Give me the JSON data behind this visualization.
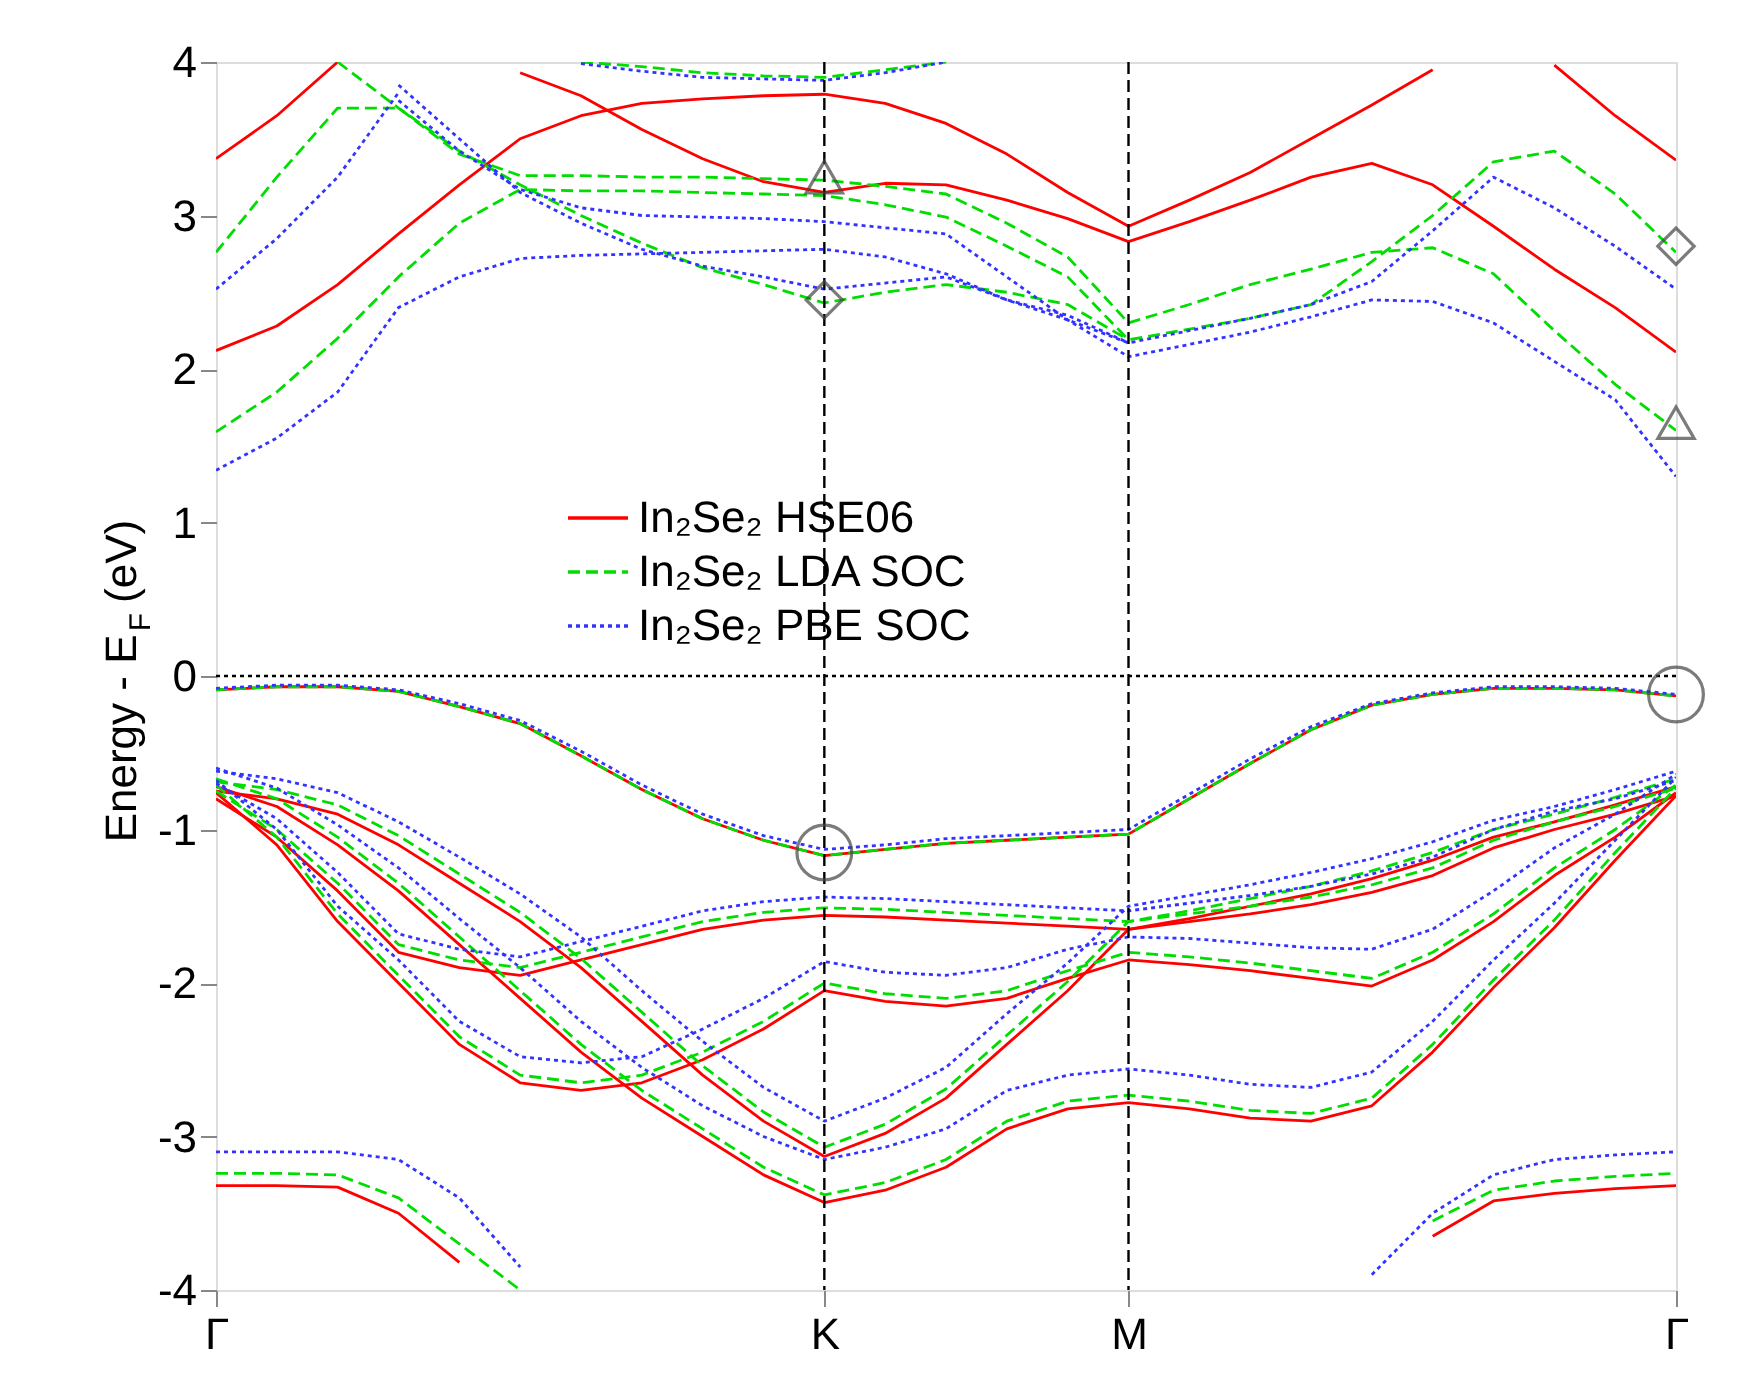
{
  "chart_data": {
    "type": "line",
    "ylabel": "Energy - E$_{F}$ (eV)",
    "ylim": [
      -4,
      4
    ],
    "categories": [
      "Γ",
      null,
      null,
      null,
      null,
      null,
      null,
      null,
      null,
      null,
      "K",
      null,
      null,
      null,
      null,
      "M",
      null,
      null,
      null,
      null,
      null,
      null,
      null,
      null,
      "Γ"
    ],
    "yticks": [
      -4,
      -3,
      -2,
      -1,
      0,
      1,
      2,
      3,
      4
    ],
    "grid": false,
    "legend": "center",
    "ref_lines": [
      {
        "axis": "x",
        "value": "K",
        "line_style": "dashed",
        "color": "#000000"
      },
      {
        "axis": "x",
        "value": "M",
        "line_style": "dashed",
        "color": "#000000"
      },
      {
        "axis": "y",
        "value": 0,
        "line_style": "dotted",
        "color": "#000000"
      }
    ],
    "series": [
      {
        "name": "In₂Se₂ HSE06",
        "color": "#ff0000",
        "line_style": "solid",
        "values": [
          -0.09,
          -0.07,
          -0.07,
          -0.1,
          -0.2,
          -0.31,
          -0.52,
          -0.74,
          -0.93,
          -1.07,
          -1.17,
          -1.13,
          -1.09,
          -1.07,
          -1.05,
          -1.03,
          -0.8,
          -0.57,
          -0.35,
          -0.19,
          -0.12,
          -0.08,
          -0.08,
          -0.09,
          -0.13
        ]
      },
      {
        "color": "#ff0000",
        "line_style": "solid",
        "values": [
          -0.8,
          -1.05,
          -1.4,
          -1.8,
          -1.9,
          -1.95,
          -1.85,
          -1.75,
          -1.65,
          -1.59,
          -1.56,
          -1.57,
          -1.59,
          -1.61,
          -1.63,
          -1.65,
          -1.6,
          -1.55,
          -1.49,
          -1.41,
          -1.3,
          -1.12,
          -1.0,
          -0.9,
          -0.78
        ]
      },
      {
        "color": "#ff0000",
        "line_style": "solid",
        "values": [
          -0.76,
          -1.1,
          -1.6,
          -2.0,
          -2.4,
          -2.65,
          -2.7,
          -2.65,
          -2.5,
          -2.3,
          -2.05,
          -2.12,
          -2.15,
          -2.1,
          -1.97,
          -1.85,
          -1.88,
          -1.92,
          -1.97,
          -2.02,
          -1.85,
          -1.6,
          -1.3,
          -1.05,
          -0.76
        ]
      },
      {
        "color": "#ff0000",
        "line_style": "solid",
        "values": [
          -0.75,
          -0.8,
          -0.9,
          -1.1,
          -1.35,
          -1.6,
          -1.9,
          -2.25,
          -2.6,
          -2.9,
          -3.13,
          -2.98,
          -2.75,
          -2.4,
          -2.05,
          -1.65,
          -1.58,
          -1.5,
          -1.42,
          -1.32,
          -1.2,
          -1.05,
          -0.95,
          -0.84,
          -0.72
        ]
      },
      {
        "color": "#ff0000",
        "line_style": "solid",
        "values": [
          -0.72,
          -0.85,
          -1.1,
          -1.4,
          -1.75,
          -2.1,
          -2.45,
          -2.75,
          -3.0,
          -3.25,
          -3.43,
          -3.35,
          -3.2,
          -2.95,
          -2.82,
          -2.78,
          -2.82,
          -2.88,
          -2.9,
          -2.8,
          -2.45,
          -2.03,
          -1.64,
          -1.2,
          -0.78
        ]
      },
      {
        "color": "#ff0000",
        "line_style": "solid",
        "values": [
          -3.32,
          -3.32,
          -3.33,
          -3.5,
          -3.82,
          null,
          null,
          null,
          null,
          null,
          null,
          null,
          null,
          null,
          null,
          null,
          null,
          null,
          null,
          null,
          null,
          null,
          null,
          null,
          null
        ]
      },
      {
        "color": "#ff0000",
        "line_style": "solid",
        "values": [
          null,
          null,
          null,
          null,
          null,
          null,
          null,
          null,
          null,
          null,
          null,
          null,
          null,
          null,
          null,
          null,
          null,
          null,
          null,
          null,
          -3.65,
          -3.42,
          -3.37,
          -3.34,
          -3.32
        ]
      },
      {
        "color": "#ff0000",
        "line_style": "solid",
        "values": [
          3.37,
          3.65,
          4.0,
          null,
          null,
          null,
          null,
          null,
          null,
          null,
          null,
          null,
          null,
          null,
          null,
          null,
          null,
          null,
          null,
          null,
          null,
          null,
          null,
          null,
          null
        ]
      },
      {
        "color": "#ff0000",
        "line_style": "solid",
        "values": [
          2.12,
          2.28,
          2.55,
          2.88,
          3.2,
          3.5,
          3.65,
          3.73,
          3.76,
          3.78,
          3.79,
          3.73,
          3.6,
          3.4,
          3.15,
          2.93,
          3.1,
          3.28,
          3.5,
          3.72,
          3.95,
          null,
          null,
          null,
          null
        ]
      },
      {
        "color": "#ff0000",
        "line_style": "solid",
        "values": [
          null,
          null,
          null,
          null,
          null,
          3.93,
          3.78,
          3.56,
          3.37,
          3.22,
          3.15,
          3.21,
          3.2,
          3.1,
          2.98,
          2.83,
          2.96,
          3.1,
          3.25,
          3.34,
          3.2,
          2.93,
          2.65,
          2.4,
          2.11
        ]
      },
      {
        "color": "#ff0000",
        "line_style": "solid",
        "values": [
          null,
          null,
          null,
          null,
          null,
          null,
          null,
          null,
          null,
          null,
          null,
          null,
          null,
          null,
          null,
          null,
          null,
          null,
          null,
          null,
          null,
          null,
          3.98,
          3.65,
          3.36
        ]
      },
      {
        "name": "In₂Se₂ LDA SOC",
        "color": "#00dd00",
        "line_style": "dashed",
        "values": [
          -0.09,
          -0.07,
          -0.07,
          -0.1,
          -0.2,
          -0.31,
          -0.52,
          -0.74,
          -0.93,
          -1.07,
          -1.17,
          -1.13,
          -1.09,
          -1.07,
          -1.05,
          -1.03,
          -0.8,
          -0.57,
          -0.35,
          -0.19,
          -0.12,
          -0.08,
          -0.08,
          -0.09,
          -0.13
        ]
      },
      {
        "color": "#00dd00",
        "line_style": "dashed",
        "values": [
          -0.75,
          -1.0,
          -1.35,
          -1.75,
          -1.85,
          -1.9,
          -1.8,
          -1.7,
          -1.6,
          -1.54,
          -1.51,
          -1.52,
          -1.54,
          -1.56,
          -1.58,
          -1.6,
          -1.55,
          -1.5,
          -1.44,
          -1.36,
          -1.25,
          -1.07,
          -0.95,
          -0.85,
          -0.73
        ]
      },
      {
        "color": "#00dd00",
        "line_style": "dashed",
        "values": [
          -0.71,
          -1.05,
          -1.55,
          -1.95,
          -2.35,
          -2.6,
          -2.65,
          -2.6,
          -2.45,
          -2.25,
          -2.0,
          -2.07,
          -2.1,
          -2.05,
          -1.92,
          -1.8,
          -1.83,
          -1.87,
          -1.92,
          -1.97,
          -1.8,
          -1.55,
          -1.25,
          -1.0,
          -0.71
        ]
      },
      {
        "color": "#00dd00",
        "line_style": "dashed",
        "values": [
          -0.69,
          -0.74,
          -0.84,
          -1.04,
          -1.29,
          -1.54,
          -1.84,
          -2.19,
          -2.54,
          -2.84,
          -3.07,
          -2.92,
          -2.69,
          -2.34,
          -1.99,
          -1.6,
          -1.53,
          -1.45,
          -1.37,
          -1.27,
          -1.15,
          -1.0,
          -0.9,
          -0.79,
          -0.67
        ]
      },
      {
        "color": "#00dd00",
        "line_style": "dashed",
        "values": [
          -0.67,
          -0.8,
          -1.05,
          -1.35,
          -1.7,
          -2.05,
          -2.4,
          -2.7,
          -2.95,
          -3.2,
          -3.38,
          -3.3,
          -3.15,
          -2.9,
          -2.77,
          -2.73,
          -2.77,
          -2.83,
          -2.85,
          -2.75,
          -2.4,
          -1.98,
          -1.59,
          -1.15,
          -0.73
        ]
      },
      {
        "color": "#00dd00",
        "line_style": "dashed",
        "values": [
          -3.24,
          -3.24,
          -3.25,
          -3.4,
          -3.7,
          -4.0,
          null,
          null,
          null,
          null,
          null,
          null,
          null,
          null,
          null,
          null,
          null,
          null,
          null,
          null,
          null,
          null,
          null,
          null,
          null
        ]
      },
      {
        "color": "#00dd00",
        "line_style": "dashed",
        "values": [
          null,
          null,
          null,
          null,
          null,
          null,
          null,
          null,
          null,
          null,
          null,
          null,
          null,
          null,
          null,
          null,
          null,
          null,
          null,
          null,
          -3.55,
          -3.35,
          -3.29,
          -3.26,
          -3.24
        ]
      },
      {
        "color": "#00dd00",
        "line_style": "dashed",
        "values": [
          2.76,
          3.25,
          3.7,
          3.7,
          3.4,
          3.26,
          3.26,
          3.25,
          3.25,
          3.24,
          3.23,
          3.19,
          3.14,
          2.95,
          2.73,
          2.3,
          2.42,
          2.55,
          2.65,
          2.76,
          2.79,
          2.62,
          2.25,
          1.9,
          1.6
        ]
      },
      {
        "color": "#00dd00",
        "line_style": "dashed",
        "values": [
          1.59,
          1.85,
          2.2,
          2.6,
          2.95,
          3.17,
          3.16,
          3.16,
          3.15,
          3.14,
          3.13,
          3.07,
          2.99,
          2.8,
          2.6,
          2.19,
          2.26,
          2.33,
          2.42,
          2.7,
          3.0,
          3.35,
          3.42,
          3.14,
          2.76
        ]
      },
      {
        "color": "#00dd00",
        "line_style": "dashed",
        "values": [
          null,
          null,
          4.0,
          3.7,
          3.42,
          3.2,
          3.0,
          2.82,
          2.66,
          2.55,
          2.43,
          2.5,
          2.55,
          2.5,
          2.42,
          2.19,
          null,
          null,
          null,
          null,
          null,
          null,
          null,
          null,
          null
        ]
      },
      {
        "color": "#00dd00",
        "line_style": "dashed",
        "values": [
          null,
          null,
          null,
          null,
          null,
          null,
          4.0,
          3.97,
          3.93,
          3.91,
          3.9,
          3.95,
          4.0,
          null,
          null,
          null,
          null,
          null,
          null,
          null,
          null,
          null,
          null,
          null,
          null
        ]
      },
      {
        "name": "In₂Se₂ PBE SOC",
        "color": "#3333ff",
        "line_style": "dotted",
        "values": [
          -0.08,
          -0.06,
          -0.06,
          -0.09,
          -0.18,
          -0.29,
          -0.49,
          -0.71,
          -0.9,
          -1.04,
          -1.13,
          -1.1,
          -1.06,
          -1.04,
          -1.02,
          -1.0,
          -0.77,
          -0.54,
          -0.33,
          -0.18,
          -0.11,
          -0.07,
          -0.07,
          -0.08,
          -0.12
        ]
      },
      {
        "color": "#3333ff",
        "line_style": "dotted",
        "values": [
          -0.7,
          -0.93,
          -1.28,
          -1.68,
          -1.78,
          -1.83,
          -1.73,
          -1.63,
          -1.53,
          -1.47,
          -1.44,
          -1.45,
          -1.47,
          -1.49,
          -1.51,
          -1.53,
          -1.48,
          -1.43,
          -1.37,
          -1.29,
          -1.18,
          -1.0,
          -0.88,
          -0.8,
          -0.68
        ]
      },
      {
        "color": "#3333ff",
        "line_style": "dotted",
        "values": [
          -0.68,
          -1.0,
          -1.5,
          -1.85,
          -2.25,
          -2.48,
          -2.52,
          -2.48,
          -2.3,
          -2.1,
          -1.86,
          -1.93,
          -1.95,
          -1.9,
          -1.78,
          -1.7,
          -1.71,
          -1.74,
          -1.77,
          -1.78,
          -1.65,
          -1.4,
          -1.12,
          -0.9,
          -0.64
        ]
      },
      {
        "color": "#3333ff",
        "line_style": "dotted",
        "values": [
          -0.62,
          -0.67,
          -0.76,
          -0.95,
          -1.18,
          -1.42,
          -1.7,
          -2.05,
          -2.38,
          -2.68,
          -2.9,
          -2.75,
          -2.55,
          -2.2,
          -1.87,
          -1.5,
          -1.43,
          -1.36,
          -1.28,
          -1.19,
          -1.08,
          -0.94,
          -0.85,
          -0.74,
          -0.62
        ]
      },
      {
        "color": "#3333ff",
        "line_style": "dotted",
        "values": [
          -0.6,
          -0.73,
          -0.97,
          -1.25,
          -1.58,
          -1.9,
          -2.25,
          -2.55,
          -2.8,
          -3.0,
          -3.15,
          -3.07,
          -2.95,
          -2.7,
          -2.6,
          -2.56,
          -2.6,
          -2.66,
          -2.68,
          -2.58,
          -2.25,
          -1.85,
          -1.48,
          -1.07,
          -0.66
        ]
      },
      {
        "color": "#3333ff",
        "line_style": "dotted",
        "values": [
          -3.1,
          -3.1,
          -3.1,
          -3.15,
          -3.4,
          -3.85,
          null,
          null,
          null,
          null,
          null,
          null,
          null,
          null,
          null,
          null,
          null,
          null,
          null,
          null,
          null,
          null,
          null,
          null,
          null
        ]
      },
      {
        "color": "#3333ff",
        "line_style": "dotted",
        "values": [
          null,
          null,
          null,
          null,
          null,
          null,
          null,
          null,
          null,
          null,
          null,
          null,
          null,
          null,
          null,
          null,
          null,
          null,
          null,
          -3.9,
          -3.5,
          -3.25,
          -3.15,
          -3.12,
          -3.1
        ]
      },
      {
        "color": "#3333ff",
        "line_style": "dotted",
        "values": [
          2.52,
          2.85,
          3.25,
          3.8,
          null,
          null,
          null,
          null,
          null,
          null,
          null,
          null,
          null,
          null,
          null,
          null,
          null,
          null,
          null,
          null,
          null,
          null,
          null,
          null,
          null
        ]
      },
      {
        "color": "#3333ff",
        "line_style": "dotted",
        "values": [
          1.34,
          1.55,
          1.85,
          2.4,
          2.6,
          2.72,
          2.74,
          2.75,
          2.76,
          2.77,
          2.78,
          2.73,
          2.62,
          2.45,
          2.32,
          2.17,
          2.25,
          2.33,
          2.42,
          2.57,
          2.9,
          3.25,
          3.05,
          2.8,
          2.52
        ]
      },
      {
        "color": "#3333ff",
        "line_style": "dotted",
        "values": [
          null,
          null,
          null,
          3.75,
          3.42,
          3.17,
          3.05,
          3.0,
          2.99,
          2.98,
          2.96,
          2.92,
          2.88,
          2.6,
          2.32,
          2.08,
          2.16,
          2.24,
          2.34,
          2.45,
          2.44,
          2.3,
          2.05,
          1.8,
          1.3
        ]
      },
      {
        "color": "#3333ff",
        "line_style": "dotted",
        "values": [
          null,
          null,
          null,
          3.85,
          3.5,
          3.15,
          2.95,
          2.78,
          2.67,
          2.6,
          2.52,
          2.56,
          2.6,
          2.45,
          2.35,
          2.17,
          null,
          null,
          null,
          null,
          null,
          null,
          null,
          null,
          null
        ]
      },
      {
        "color": "#3333ff",
        "line_style": "dotted",
        "values": [
          null,
          null,
          null,
          null,
          null,
          null,
          3.99,
          3.94,
          3.9,
          3.89,
          3.88,
          3.93,
          4.0,
          null,
          null,
          null,
          null,
          null,
          null,
          null,
          null,
          null,
          null,
          null,
          null
        ]
      },
      {
        "type": "scatter",
        "marker": "triangle",
        "color": "#444444",
        "values": [
          null,
          null,
          null,
          null,
          null,
          null,
          null,
          null,
          null,
          null,
          3.25,
          null,
          null,
          null,
          null,
          null,
          null,
          null,
          null,
          null,
          null,
          null,
          null,
          null,
          1.65
        ]
      },
      {
        "type": "scatter",
        "marker": "diamond",
        "color": "#444444",
        "values": [
          null,
          null,
          null,
          null,
          null,
          null,
          null,
          null,
          null,
          null,
          2.45,
          null,
          null,
          null,
          null,
          null,
          null,
          null,
          null,
          null,
          null,
          null,
          null,
          null,
          2.8
        ]
      },
      {
        "type": "scatter",
        "marker": "circle",
        "color": "#444444",
        "values": [
          null,
          null,
          null,
          null,
          null,
          null,
          null,
          null,
          null,
          null,
          -1.15,
          null,
          null,
          null,
          null,
          null,
          null,
          null,
          null,
          null,
          null,
          null,
          null,
          null,
          -0.12
        ]
      }
    ]
  }
}
